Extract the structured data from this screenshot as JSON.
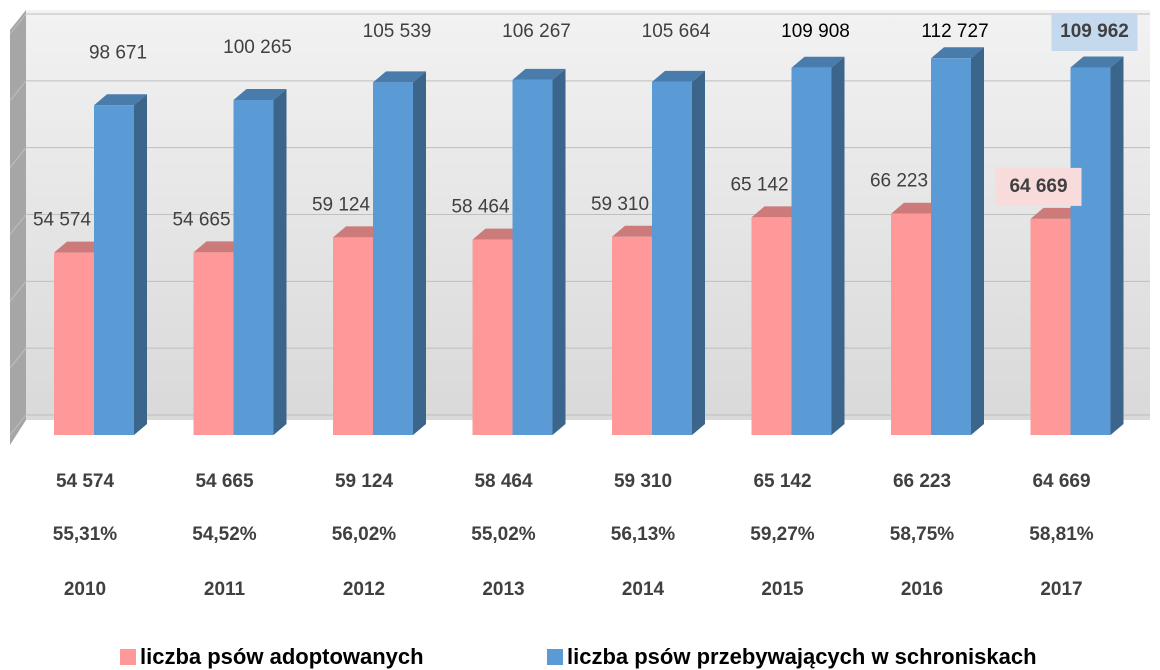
{
  "chart_data": {
    "type": "bar3d",
    "categories": [
      "2010",
      "2011",
      "2012",
      "2013",
      "2014",
      "2015",
      "2016",
      "2017"
    ],
    "series": [
      {
        "name": "liczba psów adoptowanych",
        "color": "#ff9999",
        "values": [
          54574,
          54665,
          59124,
          58464,
          59310,
          65142,
          66223,
          64669
        ],
        "value_labels": [
          "54 574",
          "54 665",
          "59 124",
          "58 464",
          "59 310",
          "65 142",
          "66 223",
          "64 669"
        ]
      },
      {
        "name": "liczba psów przebywających w schroniskach",
        "color": "#5b9bd5",
        "values": [
          98671,
          100265,
          105539,
          106267,
          105664,
          109908,
          112727,
          109962
        ],
        "value_labels": [
          "98 671",
          "100 265",
          "105 539",
          "106 267",
          "105 664",
          "109 908",
          "112 727",
          "109 962"
        ]
      }
    ],
    "data_table": [
      {
        "values": [
          55.31,
          54.52,
          56.02,
          55.02,
          56.13,
          59.27,
          58.75,
          58.81
        ],
        "value_labels": [
          "55,31%",
          "54,52%",
          "56,02%",
          "55,02%",
          "56,13%",
          "59,27%",
          "58,75%",
          "58,81%"
        ]
      }
    ],
    "ylim": [
      0,
      120000
    ],
    "yticks": [
      0,
      20000,
      40000,
      60000,
      80000,
      100000,
      120000
    ],
    "grid": true,
    "legend": "bottom"
  }
}
